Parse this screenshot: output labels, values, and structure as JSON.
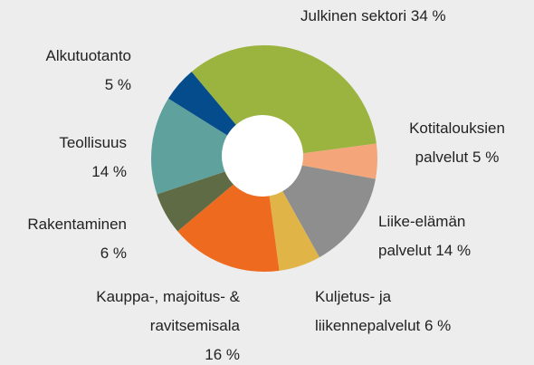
{
  "chart_data": {
    "type": "donut",
    "categories": [
      "Julkinen sektori",
      "Kotitalouksien palvelut",
      "Liike-elämän palvelut",
      "Kuljetus- ja liikennepalvelut",
      "Kauppa-, majoitus- & ravitsemisala",
      "Rakentaminen",
      "Teollisuus",
      "Alkutuotanto"
    ],
    "values": [
      34,
      5,
      14,
      6,
      16,
      6,
      14,
      5
    ],
    "value_labels": [
      "34 %",
      "5 %",
      "14 %",
      "6 %",
      "16 %",
      "6 %",
      "14 %",
      "5 %"
    ],
    "colors": [
      "#9bb33f",
      "#f4a67a",
      "#8e8e8e",
      "#e0b446",
      "#ee6a1f",
      "#5f6b44",
      "#5fa19c",
      "#054c8c"
    ]
  }
}
